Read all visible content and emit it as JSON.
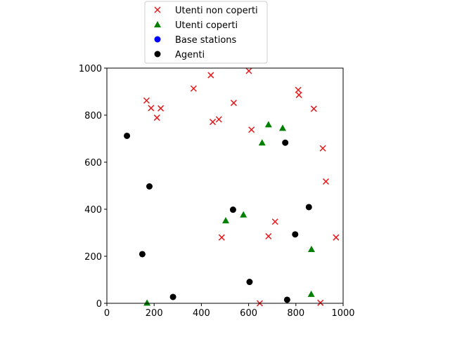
{
  "chart_data": {
    "type": "scatter",
    "xlim": [
      0,
      1000
    ],
    "ylim": [
      0,
      1000
    ],
    "x_ticks": [
      "0",
      "200",
      "400",
      "600",
      "800",
      "1000"
    ],
    "y_ticks": [
      "0",
      "200",
      "400",
      "600",
      "800",
      "1000"
    ],
    "grid": false,
    "legend_position": "top-center, above plot",
    "series": [
      {
        "name": "Utenti non coperti",
        "marker": "x",
        "color": "#e31a1c",
        "points": [
          [
            168,
            862
          ],
          [
            187,
            830
          ],
          [
            212,
            789
          ],
          [
            228,
            829
          ],
          [
            367,
            913
          ],
          [
            440,
            970
          ],
          [
            448,
            771
          ],
          [
            474,
            782
          ],
          [
            537,
            852
          ],
          [
            601,
            988
          ],
          [
            612,
            738
          ],
          [
            810,
            907
          ],
          [
            813,
            886
          ],
          [
            876,
            827
          ],
          [
            914,
            659
          ],
          [
            927,
            518
          ],
          [
            970,
            280
          ],
          [
            486,
            280
          ],
          [
            684,
            285
          ],
          [
            712,
            347
          ],
          [
            647,
            0
          ],
          [
            904,
            2
          ]
        ]
      },
      {
        "name": "Utenti coperti",
        "marker": "triangle",
        "color": "#008000",
        "points": [
          [
            684,
            760
          ],
          [
            744,
            745
          ],
          [
            657,
            683
          ],
          [
            503,
            352
          ],
          [
            578,
            377
          ],
          [
            866,
            230
          ],
          [
            865,
            39
          ],
          [
            170,
            2
          ]
        ]
      },
      {
        "name": "Base stations",
        "marker": "circle",
        "color": "#0000ff",
        "points": []
      },
      {
        "name": "Agenti",
        "marker": "circle",
        "color": "#000000",
        "points": [
          [
            85,
            712
          ],
          [
            180,
            497
          ],
          [
            150,
            209
          ],
          [
            280,
            27
          ],
          [
            534,
            398
          ],
          [
            604,
            91
          ],
          [
            755,
            683
          ],
          [
            797,
            293
          ],
          [
            855,
            409
          ],
          [
            763,
            15
          ]
        ]
      }
    ]
  }
}
